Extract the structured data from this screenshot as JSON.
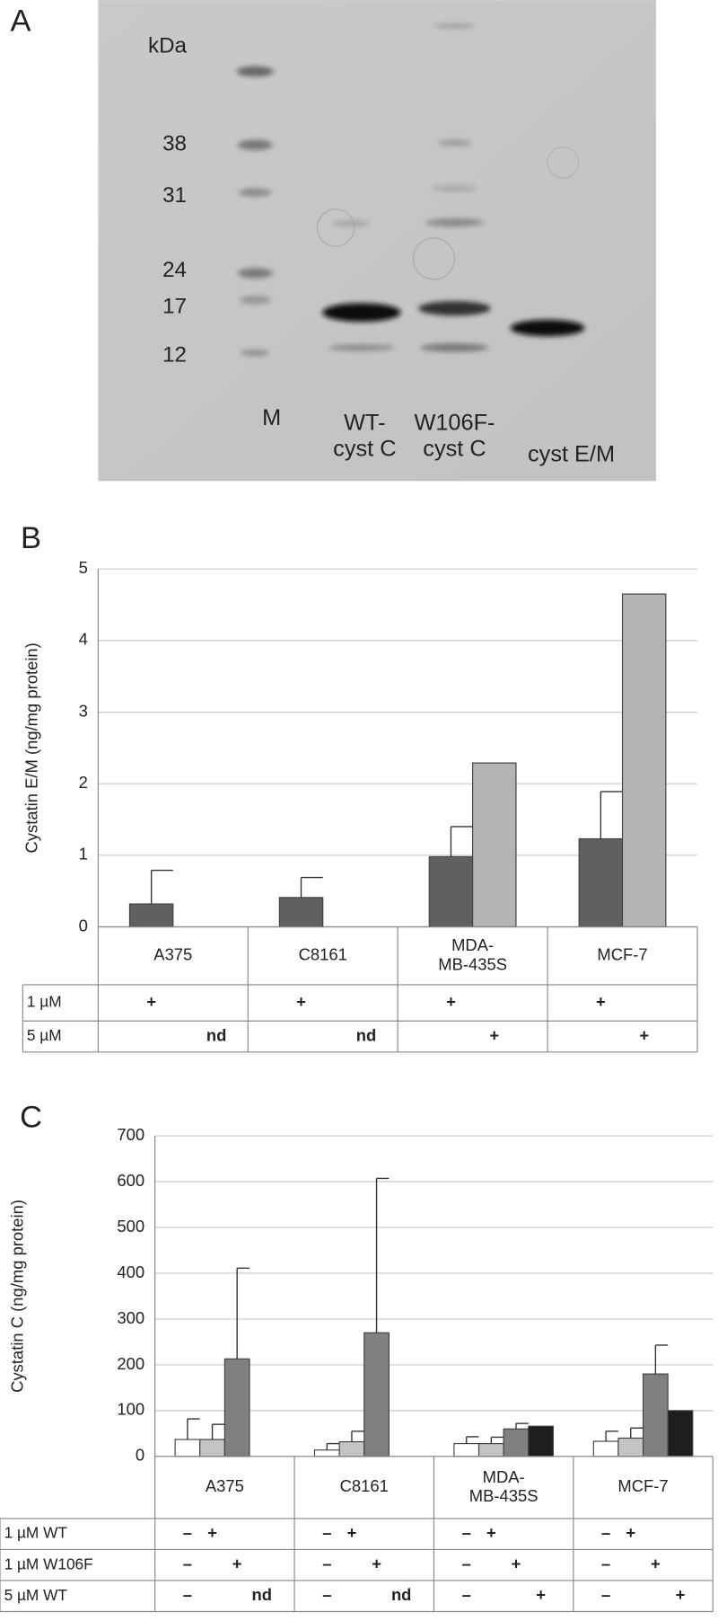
{
  "panel_labels": [
    "A",
    "B",
    "C"
  ],
  "gel": {
    "unit": "kDa",
    "markers": [
      "38",
      "31",
      "24",
      "17",
      "12"
    ],
    "lanes": [
      "M",
      "WT-\ncyst C",
      "W106F-\ncyst C",
      "cyst E/M"
    ]
  },
  "chart_data": [
    {
      "type": "bar",
      "y_label": "Cystatin E/M (ng/mg protein)",
      "categories": [
        "A375",
        "C8161",
        "MDA-\nMB-435S",
        "MCF-7"
      ],
      "series": [
        {
          "color": "#606060",
          "values": [
            0.32,
            0.41,
            0.98,
            1.23
          ],
          "errors": [
            0.47,
            0.28,
            0.42,
            0.66
          ]
        },
        {
          "color": "#b4b4b4",
          "values": [
            null,
            null,
            2.29,
            4.65
          ],
          "errors": [
            null,
            null,
            null,
            null
          ]
        }
      ],
      "ylim": [
        0,
        5
      ],
      "yticks": [
        0,
        1,
        2,
        3,
        4,
        5
      ],
      "grid": true,
      "table": {
        "rows": [
          {
            "label": "1 µM",
            "cells": [
              [
                "+"
              ],
              [
                "+"
              ],
              [
                "+"
              ],
              [
                "+"
              ]
            ]
          },
          {
            "label": "5 µM",
            "cells": [
              [
                "nd"
              ],
              [
                "nd"
              ],
              [
                "+"
              ],
              [
                "+"
              ]
            ]
          }
        ]
      }
    },
    {
      "type": "bar",
      "y_label": "Cystatin C (ng/mg protein)",
      "categories": [
        "A375",
        "C8161",
        "MDA-\nMB-435S",
        "MCF-7"
      ],
      "series": [
        {
          "color": "#ffffff",
          "values": [
            37,
            14,
            28,
            33
          ],
          "errors": [
            45,
            14,
            15,
            22
          ]
        },
        {
          "color": "#c4c4c4",
          "values": [
            37,
            32,
            28,
            40
          ],
          "errors": [
            33,
            23,
            14,
            22
          ]
        },
        {
          "color": "#808080",
          "values": [
            213,
            270,
            60,
            180
          ],
          "errors": [
            198,
            337,
            12,
            63
          ]
        },
        {
          "color": "#1e1e1e",
          "values": [
            null,
            null,
            66,
            100
          ],
          "errors": [
            null,
            null,
            null,
            null
          ]
        }
      ],
      "ylim": [
        0,
        700
      ],
      "yticks": [
        0,
        100,
        200,
        300,
        400,
        500,
        600,
        700
      ],
      "grid": true,
      "table": {
        "rows": [
          {
            "label": "1 µM WT",
            "cells": [
              [
                "–",
                "+"
              ],
              [
                "–",
                "+"
              ],
              [
                "–",
                "+"
              ],
              [
                "–",
                "+"
              ]
            ]
          },
          {
            "label": "1 µM W106F",
            "cells": [
              [
                "–",
                "+"
              ],
              [
                "–",
                "+"
              ],
              [
                "–",
                "+"
              ],
              [
                "–",
                "+"
              ]
            ]
          },
          {
            "label": "5 µM WT",
            "cells": [
              [
                "–",
                "nd"
              ],
              [
                "–",
                "nd"
              ],
              [
                "–",
                "+"
              ],
              [
                "–",
                "+"
              ]
            ]
          }
        ]
      }
    }
  ]
}
